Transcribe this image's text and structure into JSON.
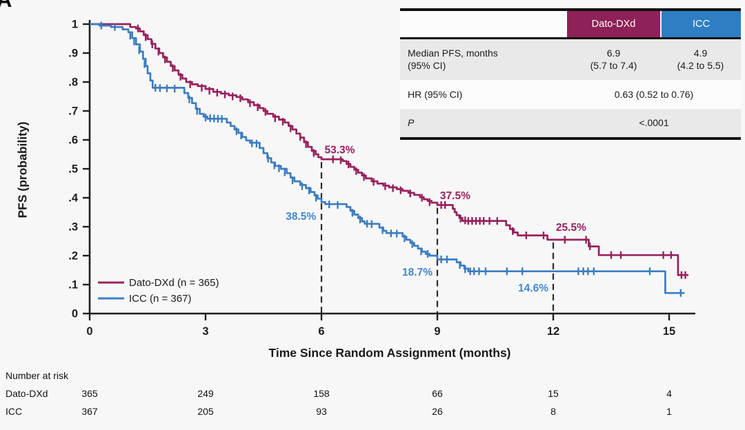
{
  "panel_label": "A",
  "colors": {
    "background": "#F7F7F8",
    "axis": "#1C1E21",
    "dashed": "#2B2B2B",
    "dato": "#97215C",
    "dato_header_bg": "#8E2157",
    "icc": "#3C7CC0",
    "icc_header_bg": "#2E7EC4",
    "icc_label": "#4486CE",
    "table_alt_row_bg": "#E9E9EA"
  },
  "summary_table": {
    "columns": [
      "",
      "Dato-DXd",
      "ICC"
    ],
    "rows": [
      {
        "label": [
          "Median PFS, months",
          "(95% CI)"
        ],
        "dato": [
          "6.9",
          "(5.7 to 7.4)"
        ],
        "icc": [
          "4.9",
          "(4.2 to 5.5)"
        ]
      },
      {
        "label": "HR (95% CI)",
        "value": "0.63 (0.52 to 0.76)"
      },
      {
        "label": "P",
        "value": "<.0001"
      }
    ]
  },
  "chart_data": {
    "type": "line",
    "subtype": "kaplan-meier-step",
    "xlabel": "Time Since Random Assignment (months)",
    "ylabel": "PFS (probability)",
    "xlim": [
      0,
      15.6
    ],
    "ylim": [
      0,
      1
    ],
    "grid": false,
    "legend_position": "lower-left",
    "x_ticks": [
      0,
      3,
      6,
      9,
      12,
      15
    ],
    "y_ticks": [
      {
        "v": 1.0,
        "label": "1"
      },
      {
        "v": 0.9,
        "label": ".9"
      },
      {
        "v": 0.8,
        "label": ".8"
      },
      {
        "v": 0.7,
        "label": ".7"
      },
      {
        "v": 0.6,
        "label": ".6"
      },
      {
        "v": 0.5,
        "label": ".5"
      },
      {
        "v": 0.4,
        "label": ".4"
      },
      {
        "v": 0.3,
        "label": ".3"
      },
      {
        "v": 0.2,
        "label": ".2"
      },
      {
        "v": 0.1,
        "label": ".1"
      },
      {
        "v": 0.0,
        "label": "0"
      }
    ],
    "dashed_reference_lines": [
      {
        "m": 6,
        "p_top": 0.533
      },
      {
        "m": 9,
        "p_top": 0.375
      },
      {
        "m": 12,
        "p_top": 0.255
      }
    ],
    "annotations": [
      {
        "text": "53.3%",
        "m": 6.08,
        "p": 0.553,
        "anchor": "start",
        "color_key": "dato"
      },
      {
        "text": "38.5%",
        "m": 5.86,
        "p": 0.324,
        "anchor": "end",
        "color_key": "icc_label"
      },
      {
        "text": "37.5%",
        "m": 9.07,
        "p": 0.395,
        "anchor": "start",
        "color_key": "dato"
      },
      {
        "text": "18.7%",
        "m": 8.875,
        "p": 0.131,
        "anchor": "end",
        "color_key": "icc_label"
      },
      {
        "text": "25.5%",
        "m": 12.07,
        "p": 0.286,
        "anchor": "start",
        "color_key": "dato"
      },
      {
        "text": "14.6%",
        "m": 11.875,
        "p": 0.076,
        "anchor": "end",
        "color_key": "icc_label"
      }
    ],
    "series": [
      {
        "name": "Dato-DXd (n = 365)",
        "color_key": "dato",
        "landmark_estimates": {
          "6_months": 0.533,
          "9_months": 0.375,
          "12_months": 0.255
        },
        "points": [
          [
            0,
            1
          ],
          [
            0.95,
            1
          ],
          [
            1.05,
            0.99
          ],
          [
            1.2,
            0.985
          ],
          [
            1.3,
            0.975
          ],
          [
            1.4,
            0.962
          ],
          [
            1.5,
            0.948
          ],
          [
            1.6,
            0.932
          ],
          [
            1.7,
            0.916
          ],
          [
            1.8,
            0.9
          ],
          [
            1.9,
            0.885
          ],
          [
            2,
            0.87
          ],
          [
            2.1,
            0.855
          ],
          [
            2.2,
            0.84
          ],
          [
            2.3,
            0.825
          ],
          [
            2.4,
            0.812
          ],
          [
            2.5,
            0.8
          ],
          [
            2.65,
            0.792
          ],
          [
            2.8,
            0.786
          ],
          [
            3,
            0.776
          ],
          [
            3.2,
            0.766
          ],
          [
            3.4,
            0.76
          ],
          [
            3.6,
            0.754
          ],
          [
            3.8,
            0.748
          ],
          [
            3.95,
            0.74
          ],
          [
            4.1,
            0.73
          ],
          [
            4.25,
            0.72
          ],
          [
            4.4,
            0.71
          ],
          [
            4.5,
            0.7
          ],
          [
            4.6,
            0.69
          ],
          [
            4.75,
            0.68
          ],
          [
            4.9,
            0.67
          ],
          [
            5.05,
            0.66
          ],
          [
            5.15,
            0.648
          ],
          [
            5.25,
            0.636
          ],
          [
            5.35,
            0.622
          ],
          [
            5.45,
            0.608
          ],
          [
            5.55,
            0.592
          ],
          [
            5.65,
            0.576
          ],
          [
            5.75,
            0.562
          ],
          [
            5.85,
            0.55
          ],
          [
            5.92,
            0.54
          ],
          [
            6,
            0.533
          ],
          [
            6.55,
            0.527
          ],
          [
            6.65,
            0.517
          ],
          [
            6.75,
            0.507
          ],
          [
            6.85,
            0.497
          ],
          [
            6.95,
            0.487
          ],
          [
            7.05,
            0.477
          ],
          [
            7.15,
            0.467
          ],
          [
            7.3,
            0.457
          ],
          [
            7.45,
            0.449
          ],
          [
            7.6,
            0.442
          ],
          [
            7.75,
            0.436
          ],
          [
            7.95,
            0.43
          ],
          [
            8.1,
            0.424
          ],
          [
            8.25,
            0.417
          ],
          [
            8.4,
            0.41
          ],
          [
            8.55,
            0.402
          ],
          [
            8.65,
            0.395
          ],
          [
            8.75,
            0.389
          ],
          [
            8.85,
            0.383
          ],
          [
            9,
            0.375
          ],
          [
            9.4,
            0.362
          ],
          [
            9.45,
            0.35
          ],
          [
            9.5,
            0.34
          ],
          [
            9.57,
            0.33
          ],
          [
            9.65,
            0.32
          ],
          [
            10.78,
            0.305
          ],
          [
            10.88,
            0.292
          ],
          [
            10.98,
            0.28
          ],
          [
            11.08,
            0.27
          ],
          [
            11.85,
            0.255
          ],
          [
            12.92,
            0.232
          ],
          [
            13.18,
            0.202
          ],
          [
            15.23,
            0.133
          ],
          [
            15.5,
            0.133
          ]
        ],
        "censor_marks": [
          [
            1.25,
            0.985
          ],
          [
            1.45,
            0.955
          ],
          [
            1.62,
            0.93
          ],
          [
            1.78,
            0.905
          ],
          [
            1.95,
            0.878
          ],
          [
            2.15,
            0.848
          ],
          [
            2.35,
            0.818
          ],
          [
            2.6,
            0.792
          ],
          [
            2.9,
            0.78
          ],
          [
            3.1,
            0.77
          ],
          [
            3.3,
            0.763
          ],
          [
            3.5,
            0.757
          ],
          [
            3.7,
            0.75
          ],
          [
            3.9,
            0.744
          ],
          [
            4.15,
            0.727
          ],
          [
            4.35,
            0.713
          ],
          [
            4.55,
            0.697
          ],
          [
            4.8,
            0.675
          ],
          [
            5,
            0.663
          ],
          [
            5.2,
            0.64
          ],
          [
            5.45,
            0.61
          ],
          [
            5.6,
            0.585
          ],
          [
            5.8,
            0.555
          ],
          [
            6.3,
            0.533
          ],
          [
            6.5,
            0.53
          ],
          [
            6.7,
            0.515
          ],
          [
            6.9,
            0.492
          ],
          [
            7.1,
            0.472
          ],
          [
            7.35,
            0.455
          ],
          [
            7.65,
            0.44
          ],
          [
            7.85,
            0.433
          ],
          [
            8.05,
            0.426
          ],
          [
            8.3,
            0.415
          ],
          [
            8.6,
            0.4
          ],
          [
            8.8,
            0.385
          ],
          [
            9.1,
            0.375
          ],
          [
            9.2,
            0.375
          ],
          [
            9.6,
            0.328
          ],
          [
            9.72,
            0.322
          ],
          [
            9.8,
            0.32
          ],
          [
            9.9,
            0.32
          ],
          [
            10,
            0.32
          ],
          [
            10.1,
            0.32
          ],
          [
            10.2,
            0.32
          ],
          [
            10.35,
            0.32
          ],
          [
            10.55,
            0.32
          ],
          [
            10.95,
            0.285
          ],
          [
            11.3,
            0.27
          ],
          [
            11.75,
            0.27
          ],
          [
            12.3,
            0.255
          ],
          [
            12.85,
            0.255
          ],
          [
            12.95,
            0.232
          ],
          [
            13.5,
            0.202
          ],
          [
            13.75,
            0.202
          ],
          [
            14.85,
            0.202
          ],
          [
            15.05,
            0.202
          ],
          [
            15.32,
            0.133
          ],
          [
            15.42,
            0.133
          ]
        ]
      },
      {
        "name": "ICC (n = 367)",
        "color_key": "icc",
        "landmark_estimates": {
          "6_months": 0.385,
          "9_months": 0.187,
          "12_months": 0.146
        },
        "points": [
          [
            0,
            1
          ],
          [
            0.25,
            0.995
          ],
          [
            0.55,
            0.99
          ],
          [
            0.85,
            0.982
          ],
          [
            1,
            0.972
          ],
          [
            1.1,
            0.952
          ],
          [
            1.2,
            0.93
          ],
          [
            1.3,
            0.905
          ],
          [
            1.38,
            0.88
          ],
          [
            1.45,
            0.855
          ],
          [
            1.5,
            0.83
          ],
          [
            1.57,
            0.805
          ],
          [
            1.63,
            0.78
          ],
          [
            2.45,
            0.762
          ],
          [
            2.55,
            0.745
          ],
          [
            2.65,
            0.727
          ],
          [
            2.75,
            0.707
          ],
          [
            2.85,
            0.69
          ],
          [
            2.95,
            0.68
          ],
          [
            3.05,
            0.673
          ],
          [
            3.55,
            0.66
          ],
          [
            3.65,
            0.648
          ],
          [
            3.75,
            0.636
          ],
          [
            3.85,
            0.624
          ],
          [
            3.95,
            0.61
          ],
          [
            4.05,
            0.598
          ],
          [
            4.15,
            0.59
          ],
          [
            4.4,
            0.572
          ],
          [
            4.5,
            0.554
          ],
          [
            4.6,
            0.537
          ],
          [
            4.7,
            0.522
          ],
          [
            4.8,
            0.51
          ],
          [
            4.95,
            0.5
          ],
          [
            5.1,
            0.485
          ],
          [
            5.2,
            0.47
          ],
          [
            5.3,
            0.457
          ],
          [
            5.45,
            0.444
          ],
          [
            5.6,
            0.433
          ],
          [
            5.72,
            0.42
          ],
          [
            5.82,
            0.408
          ],
          [
            5.9,
            0.397
          ],
          [
            6,
            0.385
          ],
          [
            6.1,
            0.378
          ],
          [
            6.65,
            0.368
          ],
          [
            6.75,
            0.355
          ],
          [
            6.85,
            0.342
          ],
          [
            6.95,
            0.33
          ],
          [
            7.05,
            0.318
          ],
          [
            7.12,
            0.31
          ],
          [
            7.5,
            0.297
          ],
          [
            7.6,
            0.286
          ],
          [
            7.68,
            0.278
          ],
          [
            8.1,
            0.266
          ],
          [
            8.2,
            0.255
          ],
          [
            8.3,
            0.244
          ],
          [
            8.4,
            0.234
          ],
          [
            8.5,
            0.224
          ],
          [
            8.6,
            0.214
          ],
          [
            8.7,
            0.206
          ],
          [
            8.8,
            0.2
          ],
          [
            9,
            0.187
          ],
          [
            9.5,
            0.177
          ],
          [
            9.6,
            0.166
          ],
          [
            9.7,
            0.155
          ],
          [
            9.8,
            0.146
          ],
          [
            14.9,
            0.071
          ],
          [
            15.4,
            0.071
          ]
        ],
        "censor_marks": [
          [
            0.3,
            0.995
          ],
          [
            0.65,
            0.99
          ],
          [
            1.05,
            0.96
          ],
          [
            1.15,
            0.94
          ],
          [
            1.28,
            0.91
          ],
          [
            1.42,
            0.862
          ],
          [
            1.7,
            0.78
          ],
          [
            1.82,
            0.779
          ],
          [
            2,
            0.778
          ],
          [
            2.2,
            0.777
          ],
          [
            2.58,
            0.74
          ],
          [
            2.78,
            0.7
          ],
          [
            3,
            0.677
          ],
          [
            3.12,
            0.675
          ],
          [
            3.22,
            0.674
          ],
          [
            3.32,
            0.673
          ],
          [
            3.42,
            0.672
          ],
          [
            3.8,
            0.63
          ],
          [
            3.92,
            0.615
          ],
          [
            4.2,
            0.588
          ],
          [
            4.32,
            0.587
          ],
          [
            4.62,
            0.535
          ],
          [
            4.78,
            0.512
          ],
          [
            4.9,
            0.502
          ],
          [
            5.05,
            0.488
          ],
          [
            5.25,
            0.46
          ],
          [
            5.5,
            0.44
          ],
          [
            5.68,
            0.425
          ],
          [
            5.86,
            0.4
          ],
          [
            6.2,
            0.377
          ],
          [
            6.42,
            0.375
          ],
          [
            6.8,
            0.348
          ],
          [
            7,
            0.325
          ],
          [
            7.18,
            0.31
          ],
          [
            7.3,
            0.309
          ],
          [
            7.58,
            0.288
          ],
          [
            7.8,
            0.277
          ],
          [
            7.95,
            0.276
          ],
          [
            8.15,
            0.26
          ],
          [
            8.35,
            0.24
          ],
          [
            8.58,
            0.215
          ],
          [
            8.75,
            0.206
          ],
          [
            9.1,
            0.187
          ],
          [
            9.25,
            0.187
          ],
          [
            9.58,
            0.168
          ],
          [
            9.72,
            0.153
          ],
          [
            9.85,
            0.146
          ],
          [
            9.95,
            0.146
          ],
          [
            10.08,
            0.146
          ],
          [
            10.25,
            0.146
          ],
          [
            10.8,
            0.146
          ],
          [
            11.2,
            0.146
          ],
          [
            12.65,
            0.146
          ],
          [
            12.78,
            0.146
          ],
          [
            12.9,
            0.146
          ],
          [
            13.05,
            0.146
          ],
          [
            14.5,
            0.146
          ],
          [
            15.3,
            0.071
          ]
        ]
      }
    ],
    "number_at_risk": {
      "title": "Number at risk",
      "time_points": [
        0,
        3,
        6,
        9,
        12,
        15
      ],
      "rows": [
        {
          "label": "Dato-DXd",
          "counts": [
            "365",
            "249",
            "158",
            "66",
            "15",
            "4"
          ]
        },
        {
          "label": "ICC",
          "counts": [
            "367",
            "205",
            "93",
            "26",
            "8",
            "1"
          ]
        }
      ]
    }
  }
}
